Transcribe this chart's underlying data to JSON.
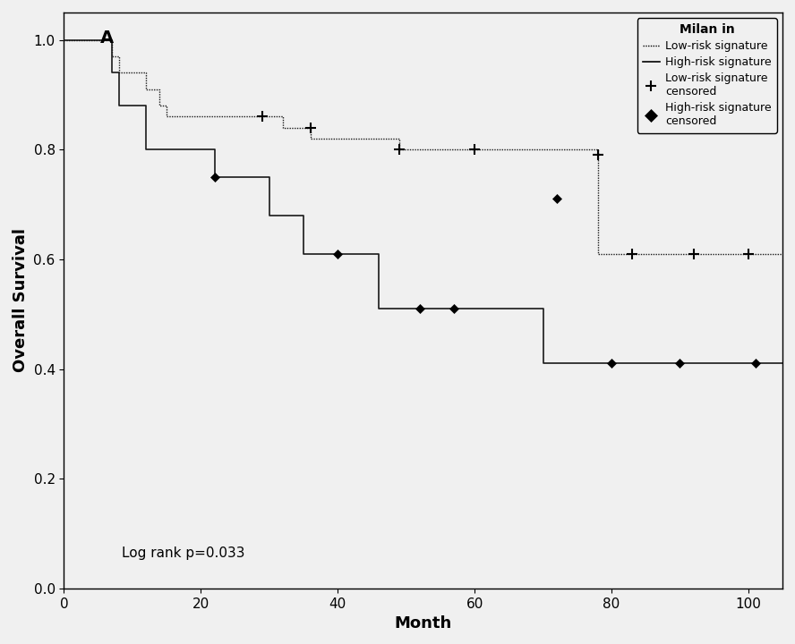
{
  "title": "Milan in",
  "panel_label": "A",
  "xlabel": "Month",
  "ylabel": "Overall Survival",
  "annotation": "Log rank p=0.033",
  "xlim": [
    0,
    105
  ],
  "ylim": [
    0.0,
    1.05
  ],
  "xticks": [
    0,
    20,
    40,
    60,
    80,
    100
  ],
  "yticks": [
    0.0,
    0.2,
    0.4,
    0.6,
    0.8,
    1.0
  ],
  "low_risk": {
    "step_x": [
      0,
      7,
      8,
      12,
      14,
      15,
      29,
      32,
      36,
      46,
      49,
      55,
      60,
      70,
      78,
      105
    ],
    "step_y": [
      1.0,
      0.97,
      0.94,
      0.91,
      0.88,
      0.86,
      0.86,
      0.84,
      0.82,
      0.82,
      0.8,
      0.8,
      0.8,
      0.8,
      0.61,
      0.61
    ],
    "color": "#1a1a1a",
    "censored_x": [
      29,
      36,
      49,
      60,
      78,
      83,
      92,
      100
    ],
    "censored_y": [
      0.86,
      0.84,
      0.8,
      0.8,
      0.79,
      0.61,
      0.61,
      0.61
    ]
  },
  "high_risk": {
    "step_x": [
      0,
      7,
      8,
      12,
      22,
      30,
      35,
      40,
      46,
      52,
      57,
      65,
      70,
      72,
      105
    ],
    "step_y": [
      1.0,
      0.94,
      0.88,
      0.8,
      0.75,
      0.68,
      0.61,
      0.61,
      0.51,
      0.51,
      0.51,
      0.51,
      0.41,
      0.41,
      0.41
    ],
    "color": "#1a1a1a",
    "censored_x": [
      22,
      40,
      52,
      57,
      72,
      80,
      90,
      101
    ],
    "censored_y": [
      0.75,
      0.61,
      0.51,
      0.51,
      0.71,
      0.41,
      0.41,
      0.41
    ]
  },
  "background_color": "#f0f0f0",
  "line_width": 1.2,
  "low_linestyle": "-",
  "high_linestyle": "--",
  "legend_title_fontsize": 10,
  "legend_fontsize": 9,
  "axis_label_fontsize": 13,
  "tick_fontsize": 11,
  "annotation_fontsize": 11,
  "panel_label_fontsize": 14
}
